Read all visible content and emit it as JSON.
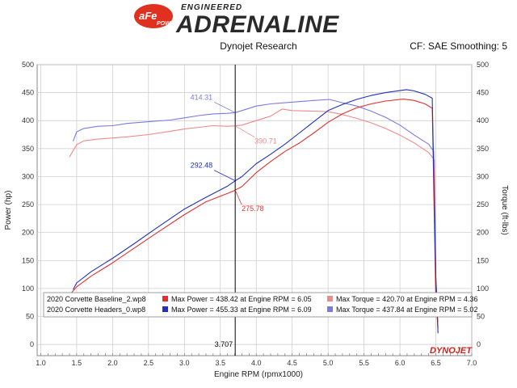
{
  "header": {
    "logo_main": "aFe",
    "logo_sub": "POWER",
    "brand_top": "ENGINEERED",
    "brand_main": "ADRENALINE",
    "left_info": "Dynojet Research",
    "right_info": "CF: SAE Smoothing: 5",
    "footer_brand": "DYNOJET"
  },
  "colors": {
    "baseline_power": "#e03030",
    "baseline_torque": "#ee8a8a",
    "headers_power": "#2030c0",
    "headers_torque": "#7a7ae0",
    "cursor": "#000000",
    "grid": "#c8c8c8",
    "plot_border": "#888888"
  },
  "chart_data": {
    "type": "line",
    "xlabel": "Engine RPM (rpmx1000)",
    "ylabel_left": "Power (hp)",
    "ylabel_right": "Torque (ft-lbs)",
    "xlim": [
      0.95,
      7.0
    ],
    "ylim": [
      -20,
      500
    ],
    "x_ticks": [
      "1.0",
      "1.5",
      "2.0",
      "2.5",
      "3.0",
      "3.5",
      "4.0",
      "4.5",
      "5.0",
      "5.5",
      "6.0",
      "6.5",
      "7.0"
    ],
    "y_ticks_left": [
      "0",
      "50",
      "100",
      "150",
      "200",
      "250",
      "300",
      "350",
      "400",
      "450",
      "500"
    ],
    "y_ticks_right": [
      "0",
      "50",
      "100",
      "150",
      "200",
      "250",
      "300",
      "350",
      "400",
      "450",
      "500"
    ],
    "grid": true,
    "cursor": {
      "x": 3.707,
      "label": "3.707"
    },
    "annotations": [
      {
        "series": "headers_torque",
        "x": 3.707,
        "y": 414.31,
        "label": "414.31"
      },
      {
        "series": "baseline_torque",
        "x": 3.707,
        "y": 390.71,
        "label": "390.71"
      },
      {
        "series": "headers_power",
        "x": 3.707,
        "y": 292.48,
        "label": "292.48"
      },
      {
        "series": "baseline_power",
        "x": 3.707,
        "y": 275.78,
        "label": "275.78"
      }
    ],
    "legend": [
      {
        "file": "2020 Corvette Baseline_2.wp8",
        "power": "Max Power = 438.42 at Engine RPM = 6.05",
        "torque": "Max Torque = 420.70 at Engine RPM = 4.36"
      },
      {
        "file": "2020 Corvette Headers_0.wp8",
        "power": "Max Power = 455.33 at Engine RPM = 6.09",
        "torque": "Max Torque = 437.84 at Engine RPM = 5.02"
      }
    ],
    "series": [
      {
        "key": "baseline_torque",
        "x": [
          1.4,
          1.5,
          1.6,
          1.8,
          2.0,
          2.2,
          2.5,
          2.8,
          3.0,
          3.2,
          3.4,
          3.6,
          3.707,
          3.8,
          4.0,
          4.2,
          4.36,
          4.5,
          4.8,
          5.0,
          5.2,
          5.4,
          5.6,
          5.8,
          6.0,
          6.2,
          6.4,
          6.48,
          6.5,
          6.53
        ],
        "values": [
          335,
          357,
          364,
          367,
          369,
          371,
          375,
          381,
          385,
          388,
          391,
          390,
          390.71,
          392,
          400,
          408,
          420.7,
          418,
          417,
          416,
          411,
          404,
          396,
          386,
          374,
          360,
          343,
          330,
          100,
          40
        ]
      },
      {
        "key": "headers_torque",
        "x": [
          1.45,
          1.5,
          1.6,
          1.8,
          2.0,
          2.2,
          2.5,
          2.8,
          3.0,
          3.2,
          3.4,
          3.6,
          3.707,
          3.8,
          4.0,
          4.2,
          4.4,
          4.6,
          4.8,
          5.02,
          5.2,
          5.4,
          5.6,
          5.8,
          6.0,
          6.2,
          6.4,
          6.47,
          6.5,
          6.53
        ],
        "values": [
          363,
          380,
          386,
          390,
          391,
          395,
          398,
          401,
          405,
          409,
          412,
          413,
          414.31,
          418,
          426,
          430,
          432,
          434,
          436,
          437.84,
          432,
          426,
          417,
          406,
          392,
          374,
          358,
          345,
          120,
          50
        ]
      },
      {
        "key": "baseline_power",
        "x": [
          1.4,
          1.5,
          1.7,
          2.0,
          2.3,
          2.6,
          3.0,
          3.3,
          3.6,
          3.707,
          3.8,
          4.0,
          4.2,
          4.4,
          4.6,
          4.8,
          5.0,
          5.2,
          5.4,
          5.6,
          5.8,
          6.05,
          6.2,
          6.35,
          6.45,
          6.5,
          6.53
        ],
        "values": [
          88,
          103,
          122,
          146,
          172,
          198,
          232,
          255,
          270,
          275.78,
          282,
          307,
          327,
          345,
          360,
          378,
          397,
          412,
          423,
          430,
          435,
          438.42,
          436,
          430,
          422,
          80,
          30
        ]
      },
      {
        "key": "headers_power",
        "x": [
          1.45,
          1.5,
          1.7,
          2.0,
          2.3,
          2.6,
          3.0,
          3.3,
          3.6,
          3.707,
          3.8,
          4.0,
          4.2,
          4.4,
          4.6,
          4.8,
          5.0,
          5.2,
          5.4,
          5.6,
          5.8,
          6.09,
          6.2,
          6.35,
          6.45,
          6.5,
          6.53
        ],
        "values": [
          98,
          110,
          130,
          154,
          180,
          207,
          242,
          263,
          283,
          292.48,
          300,
          323,
          340,
          358,
          378,
          398,
          418,
          429,
          438,
          445,
          450,
          455.33,
          453,
          447,
          440,
          120,
          20
        ]
      }
    ]
  }
}
